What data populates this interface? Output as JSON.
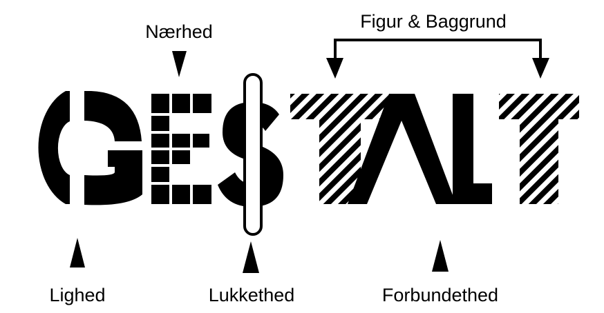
{
  "title_word": "GESTALT",
  "labels": {
    "proximity": "Nærhed",
    "figure_ground": "Figur & Baggrund",
    "similarity": "Lighed",
    "closure": "Lukkethed",
    "connectedness": "Forbundethed"
  },
  "colors": {
    "ink": "#000000",
    "background": "#ffffff"
  },
  "icons": {
    "arrow": "triangle-arrow",
    "bracket": "double-arrow-bracket"
  }
}
